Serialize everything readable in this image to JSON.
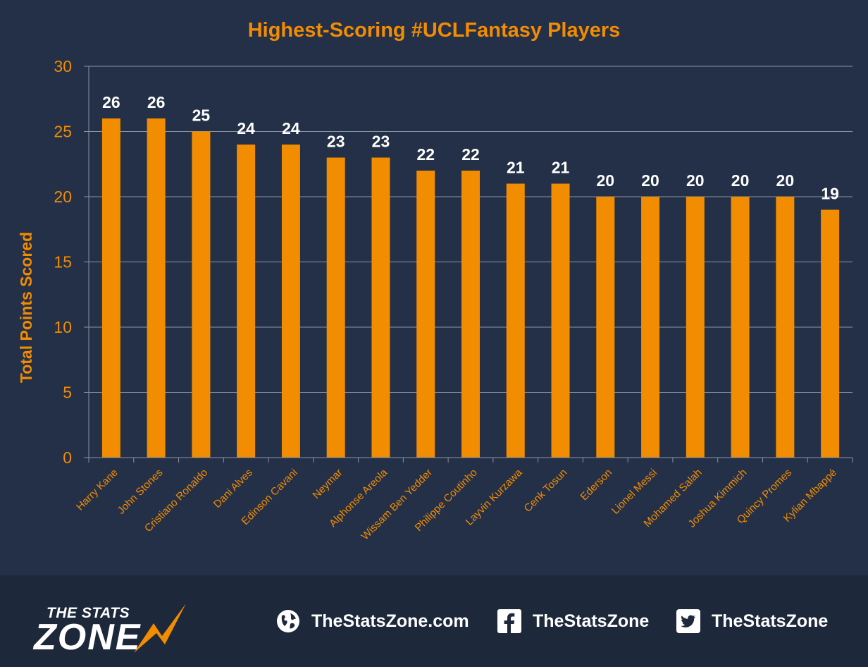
{
  "chart_data": {
    "type": "bar",
    "title": "Highest-Scoring #UCLFantasy Players",
    "ylabel": "Total Points Scored",
    "xlabel": "",
    "ylim": [
      0,
      30
    ],
    "yticks": [
      0,
      5,
      10,
      15,
      20,
      25,
      30
    ],
    "grid": true,
    "categories": [
      "Harry Kane",
      "John Stones",
      "Cristiano Ronaldo",
      "Dani Alves",
      "Edinson Cavani",
      "Neymar",
      "Alphonse Areola",
      "Wissam Ben Yedder",
      "Philippe Coutinho",
      "Layvin Kurzawa",
      "Cenk Tosun",
      "Ederson",
      "Lionel Messi",
      "Mohamed Salah",
      "Joshua Kimmich",
      "Quincy Promes",
      "Kylian Mbappé"
    ],
    "values": [
      26,
      26,
      25,
      24,
      24,
      23,
      23,
      22,
      22,
      21,
      21,
      20,
      20,
      20,
      20,
      20,
      19
    ],
    "colors": {
      "bar": "#f28c00",
      "background": "#243047",
      "label": "#ffffff",
      "grid": "#8a93a3"
    }
  },
  "footer": {
    "logo_top": "THE STATS",
    "logo_main": "ZONE",
    "website": {
      "icon": "globe-icon",
      "text": "TheStatsZone.com"
    },
    "facebook": {
      "icon": "facebook-icon",
      "text": "TheStatsZone"
    },
    "twitter": {
      "icon": "twitter-icon",
      "text": "TheStatsZone"
    }
  }
}
